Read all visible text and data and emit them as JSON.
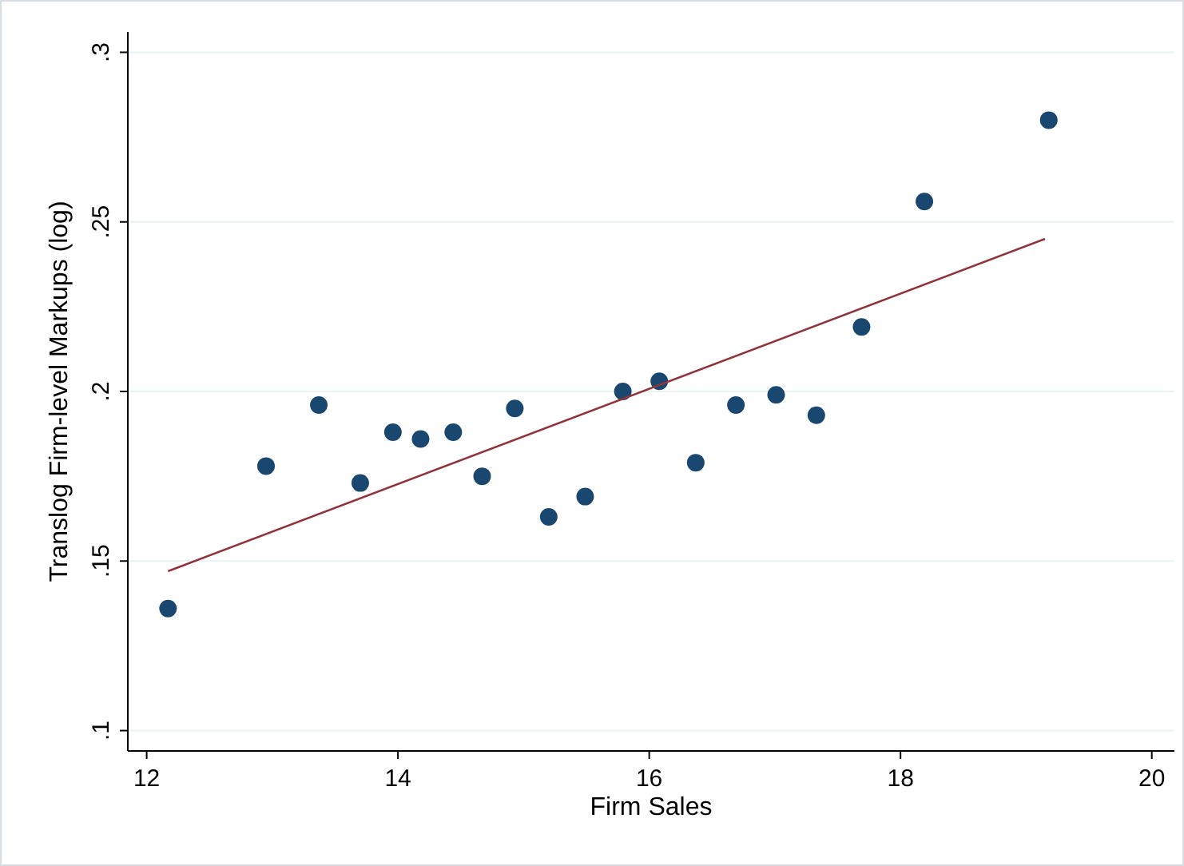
{
  "chart_data": {
    "type": "scatter",
    "xlabel": "Firm Sales",
    "ylabel": "Translog Firm-level Markups (log)",
    "xlim": [
      11.85,
      20.18
    ],
    "ylim": [
      0.094,
      0.306
    ],
    "xticks": [
      12,
      14,
      16,
      18,
      20
    ],
    "yticks": [
      {
        "value": 0.1,
        "label": ".1"
      },
      {
        "value": 0.15,
        "label": ".15"
      },
      {
        "value": 0.2,
        "label": ".2"
      },
      {
        "value": 0.25,
        "label": ".25"
      },
      {
        "value": 0.3,
        "label": ".3"
      }
    ],
    "grid": "y",
    "series": [
      {
        "color": "#1a476f",
        "marker": "circle",
        "x": [
          12.17,
          12.95,
          13.37,
          13.7,
          13.96,
          14.18,
          14.44,
          14.67,
          14.93,
          15.2,
          15.49,
          15.79,
          16.08,
          16.37,
          16.69,
          17.01,
          17.33,
          17.69,
          18.19,
          19.18
        ],
        "values": [
          0.136,
          0.178,
          0.196,
          0.173,
          0.188,
          0.186,
          0.188,
          0.175,
          0.195,
          0.163,
          0.169,
          0.2,
          0.203,
          0.179,
          0.196,
          0.199,
          0.193,
          0.219,
          0.256,
          0.28
        ]
      },
      {
        "type": "line",
        "color": "#90353b",
        "line_style": "solid",
        "x": [
          12.17,
          19.15
        ],
        "values": [
          0.147,
          0.245
        ]
      }
    ]
  }
}
